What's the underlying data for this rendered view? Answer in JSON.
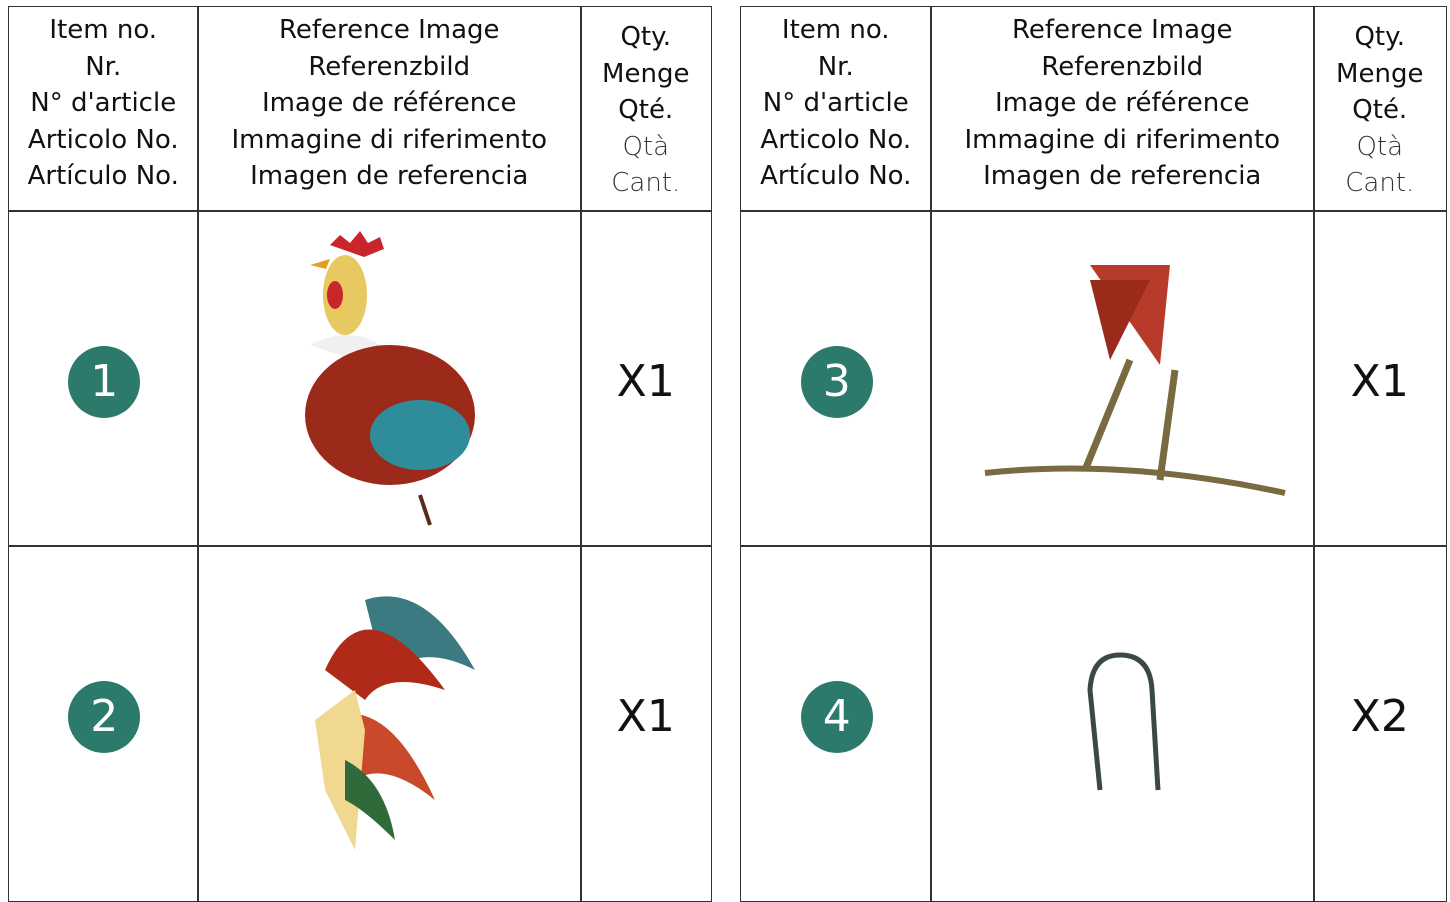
{
  "tables": [
    {
      "header": {
        "item": [
          "Item no.",
          "Nr.",
          "N° d'article",
          "Articolo No.",
          "Artículo No."
        ],
        "reference": [
          "Reference Image",
          "Referenzbild",
          "Image de référence",
          "Immagine di riferimento",
          "Imagen de referencia"
        ],
        "qty": [
          "Qty.",
          "Menge",
          "Qté.",
          "Qtà",
          "Cant."
        ]
      },
      "rows": [
        {
          "item": "1",
          "qty": "X1"
        },
        {
          "item": "2",
          "qty": "X1"
        }
      ]
    },
    {
      "header": {
        "item": [
          "Item no.",
          "Nr.",
          "N° d'article",
          "Articolo No.",
          "Artículo No."
        ],
        "reference": [
          "Reference Image",
          "Referenzbild",
          "Image de référence",
          "Immagine di riferimento",
          "Imagen de referencia"
        ],
        "qty": [
          "Qty.",
          "Menge",
          "Qté.",
          "Qtà",
          "Cant."
        ]
      },
      "rows": [
        {
          "item": "3",
          "qty": "X1"
        },
        {
          "item": "4",
          "qty": "X2"
        }
      ]
    }
  ]
}
